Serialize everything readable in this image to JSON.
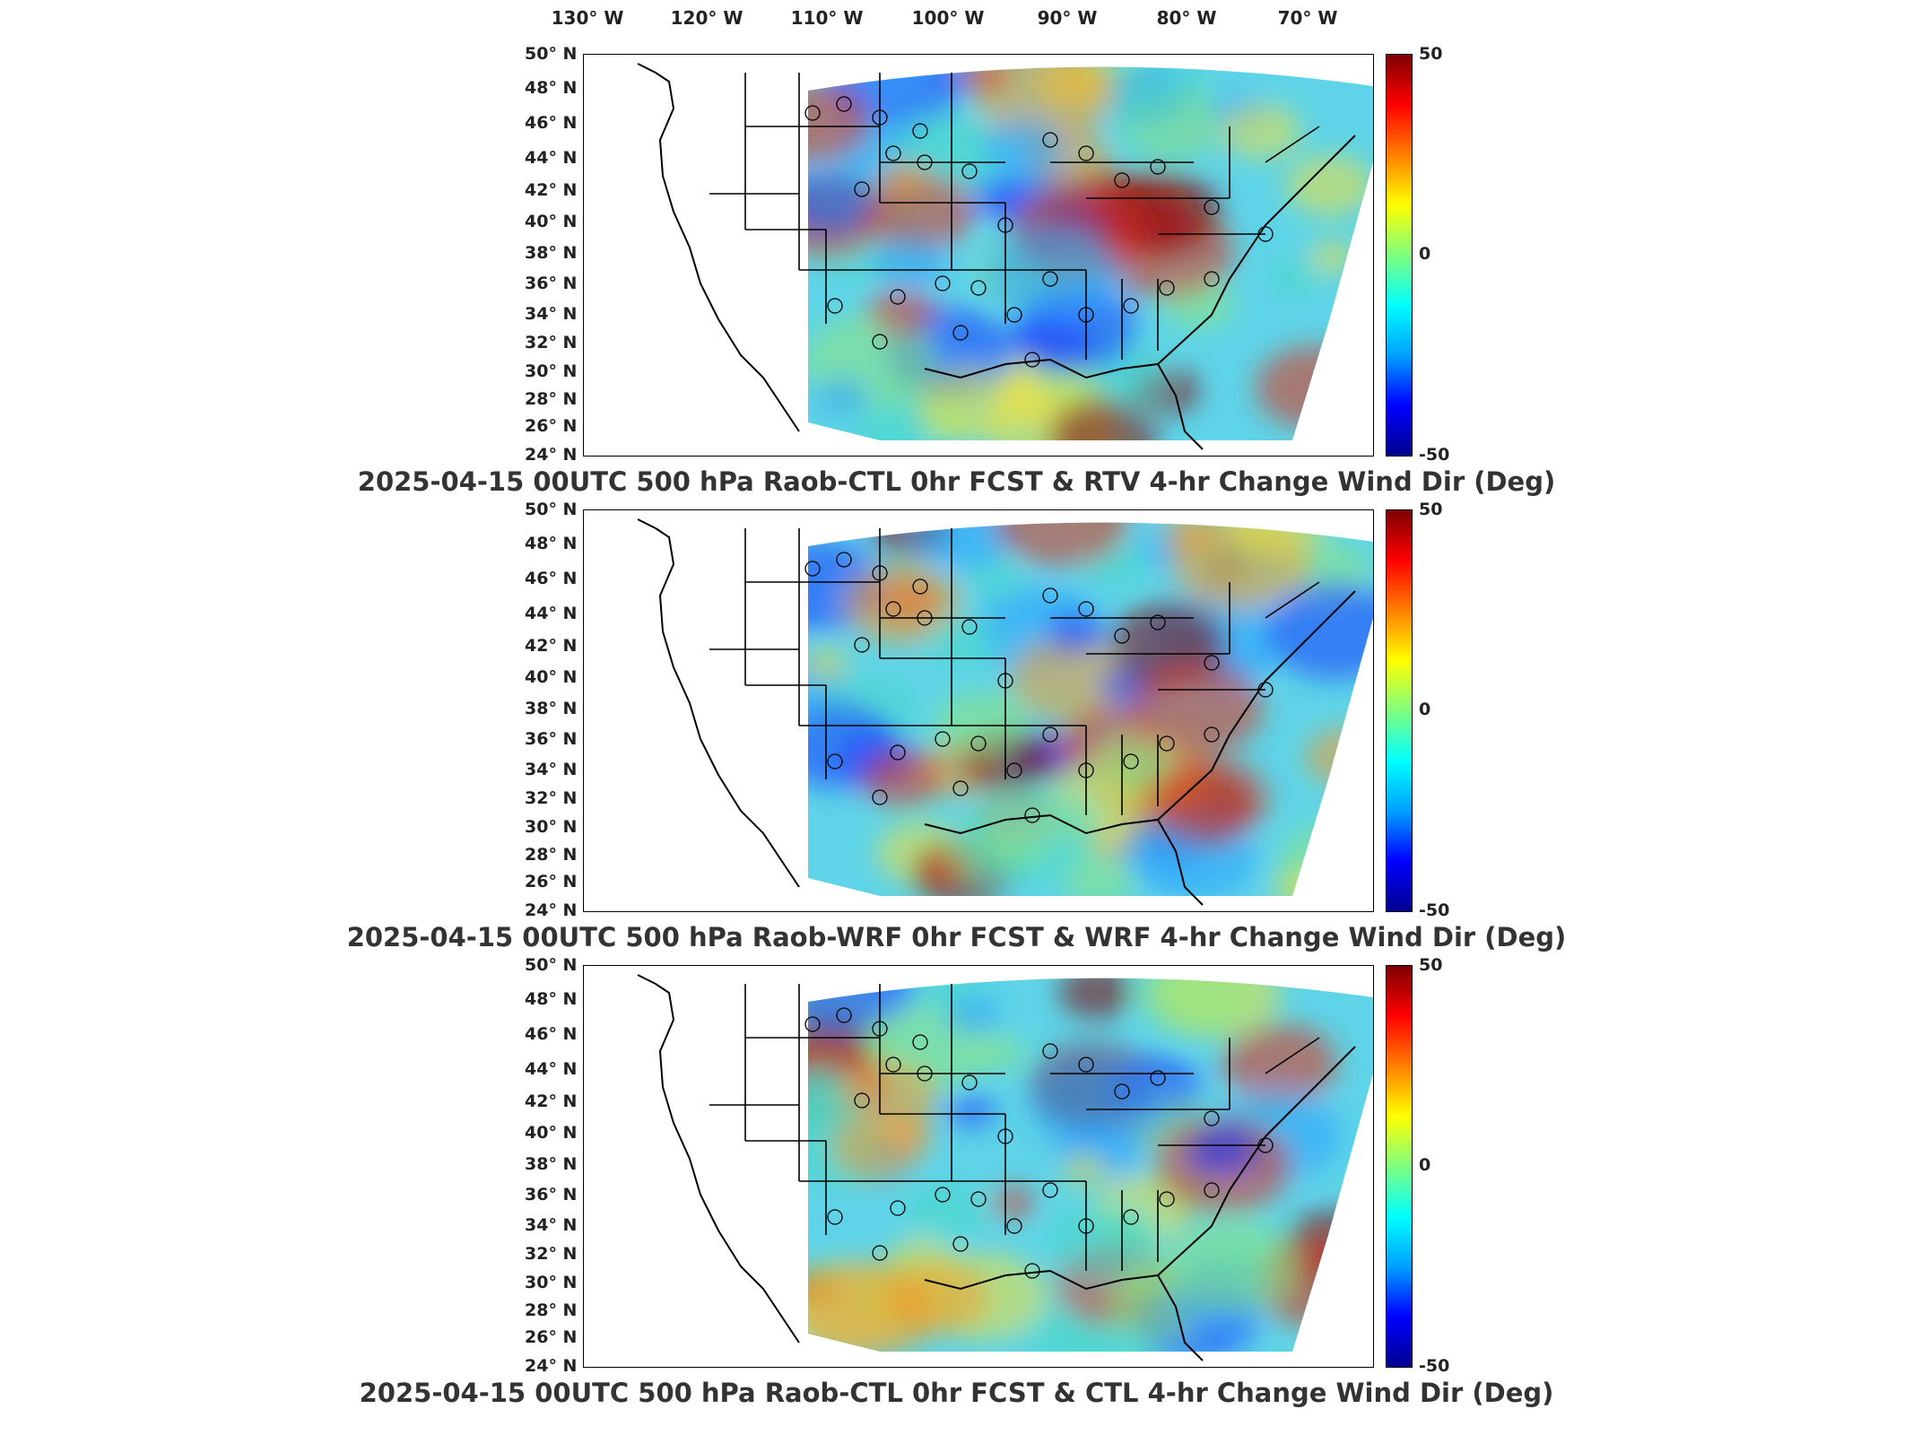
{
  "lon_labels": [
    "130° W",
    "120° W",
    "110° W",
    "100° W",
    "90° W",
    "80° W",
    "70° W"
  ],
  "lat_labels": [
    "50° N",
    "48° N",
    "46° N",
    "44° N",
    "42° N",
    "40° N",
    "38° N",
    "36° N",
    "34° N",
    "32° N",
    "30° N",
    "28° N",
    "26° N",
    "24° N"
  ],
  "colorbar": {
    "max": "50",
    "mid": "0",
    "min": "-50",
    "colors": [
      "#00008f",
      "#0000ff",
      "#00a0ff",
      "#00ffff",
      "#7fff7f",
      "#ffff00",
      "#ff8000",
      "#ff0000",
      "#7f0000"
    ]
  },
  "panels": [
    {
      "title": "2025-04-15 00UTC 500 hPa Raob-CTL 0hr FCST & RTV 4-hr Change Wind Dir (Deg)"
    },
    {
      "title": "2025-04-15 00UTC 500 hPa Raob-WRF 0hr FCST & WRF 4-hr Change Wind Dir (Deg)"
    },
    {
      "title": "2025-04-15 00UTC 500 hPa Raob-CTL 0hr FCST & CTL 4-hr Change Wind Dir (Deg)"
    }
  ]
}
